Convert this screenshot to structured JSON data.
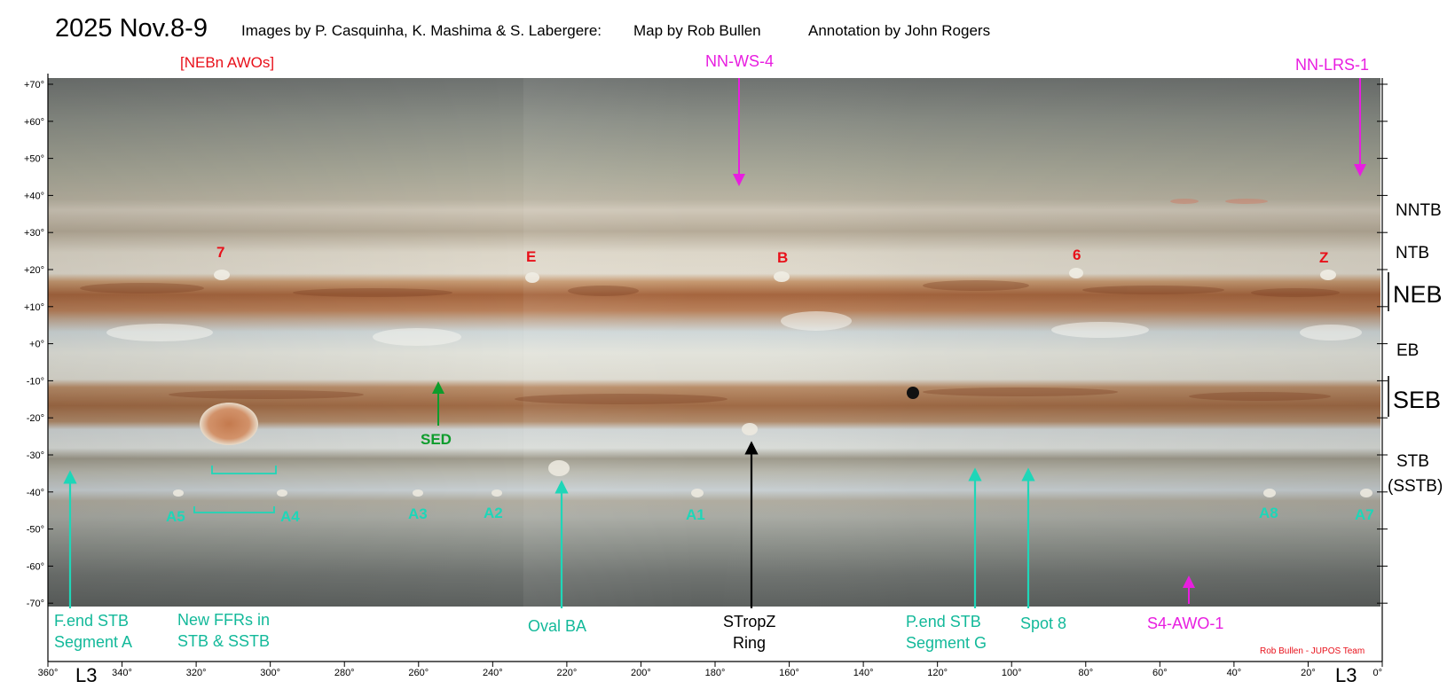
{
  "header": {
    "title": "2025 Nov.8-9",
    "credits_images": "Images by P. Casquinha, K. Mashima & S. Labergere:",
    "credits_map": "Map by Rob Bullen",
    "credits_annotation": "Annotation by John Rogers"
  },
  "footer": {
    "team_credit": "Rob Bullen - JUPOS Team",
    "axis_unit_left": "L3",
    "axis_unit_right": "L3"
  },
  "axes": {
    "lat_ticks": [
      "+70°",
      "+60°",
      "+50°",
      "+40°",
      "+30°",
      "+20°",
      "+10°",
      "+0°",
      "-10°",
      "-20°",
      "-30°",
      "-40°",
      "-50°",
      "-60°",
      "-70°"
    ],
    "lon_ticks": [
      "360°",
      "340°",
      "320°",
      "300°",
      "280°",
      "260°",
      "240°",
      "220°",
      "200°",
      "180°",
      "160°",
      "140°",
      "120°",
      "100°",
      "80°",
      "60°",
      "40°",
      "20°",
      "0°"
    ]
  },
  "belts": {
    "nntb": "NNTB",
    "ntb": "NTB",
    "neb": "NEB",
    "eb": "EB",
    "seb": "SEB",
    "stb": "STB",
    "sstb": "(SSTB)"
  },
  "features": {
    "nebn_awos": "[NEBn AWOs]",
    "awo_7": "7",
    "awo_e": "E",
    "awo_b": "B",
    "awo_6": "6",
    "awo_z": "Z",
    "nn_ws_4": "NN-WS-4",
    "nn_lrs_1": "NN-LRS-1",
    "sed": "SED",
    "a1": "A1",
    "a2": "A2",
    "a3": "A3",
    "a4": "A4",
    "a5": "A5",
    "a7": "A7",
    "a8": "A8",
    "fend_l1": "F.end STB",
    "fend_l2": "Segment A",
    "ffr_l1": "New FFRs in",
    "ffr_l2": "STB & SSTB",
    "oval_ba": "Oval BA",
    "stropz_l1": "STropZ",
    "stropz_l2": "Ring",
    "pend_l1": "P.end STB",
    "pend_l2": "Segment G",
    "spot8": "Spot 8",
    "s4_awo_1": "S4-AWO-1"
  },
  "colors": {
    "red": "#e8101a",
    "magenta": "#e81ee0",
    "cyan": "#1ed6b8",
    "cyan_text": "#13b99a",
    "green": "#0e9c2c",
    "black": "#000000"
  }
}
